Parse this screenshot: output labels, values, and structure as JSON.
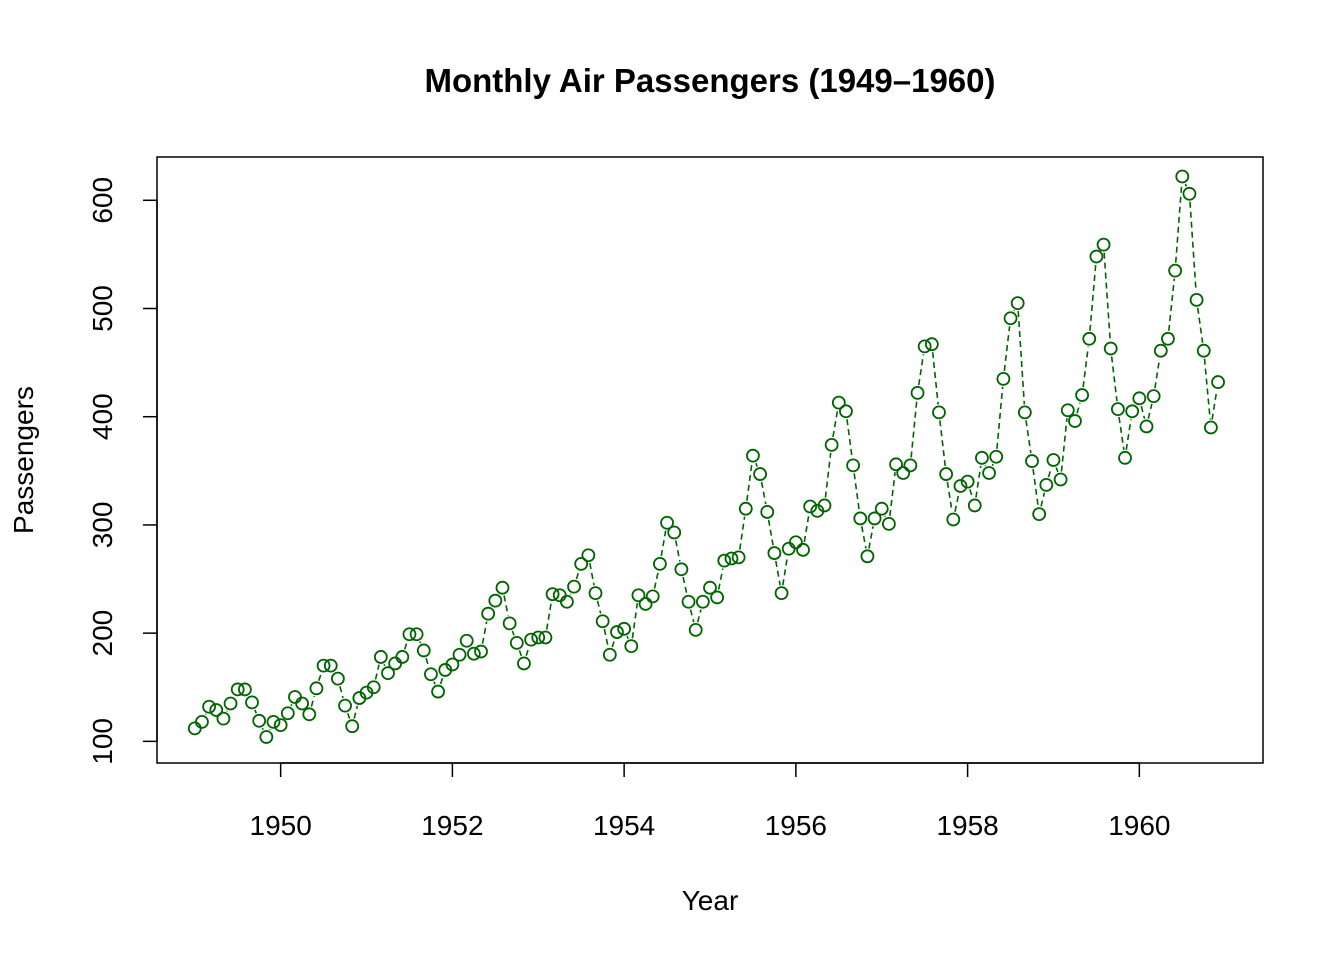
{
  "chart_data": {
    "type": "line",
    "title": "Monthly Air Passengers (1949–1960)",
    "xlabel": "Year",
    "ylabel": "Passengers",
    "xlim": [
      1948.56,
      1961.44
    ],
    "ylim": [
      80,
      640
    ],
    "x_ticks": [
      1950,
      1952,
      1954,
      1956,
      1958,
      1960
    ],
    "y_ticks": [
      100,
      200,
      300,
      400,
      500,
      600
    ],
    "x_start": 1949,
    "x_step": 0.0833333,
    "line_style": "dashed",
    "marker": "circle",
    "color": "#006400",
    "grid": false,
    "legend": "none",
    "values": [
      112,
      118,
      132,
      129,
      121,
      135,
      148,
      148,
      136,
      119,
      104,
      118,
      115,
      126,
      141,
      135,
      125,
      149,
      170,
      170,
      158,
      133,
      114,
      140,
      145,
      150,
      178,
      163,
      172,
      178,
      199,
      199,
      184,
      162,
      146,
      166,
      171,
      180,
      193,
      181,
      183,
      218,
      230,
      242,
      209,
      191,
      172,
      194,
      196,
      196,
      236,
      235,
      229,
      243,
      264,
      272,
      237,
      211,
      180,
      201,
      204,
      188,
      235,
      227,
      234,
      264,
      302,
      293,
      259,
      229,
      203,
      229,
      242,
      233,
      267,
      269,
      270,
      315,
      364,
      347,
      312,
      274,
      237,
      278,
      284,
      277,
      317,
      313,
      318,
      374,
      413,
      405,
      355,
      306,
      271,
      306,
      315,
      301,
      356,
      348,
      355,
      422,
      465,
      467,
      404,
      347,
      305,
      336,
      340,
      318,
      362,
      348,
      363,
      435,
      491,
      505,
      404,
      359,
      310,
      337,
      360,
      342,
      406,
      396,
      420,
      472,
      548,
      559,
      463,
      407,
      362,
      405,
      417,
      391,
      419,
      461,
      472,
      535,
      622,
      606,
      508,
      461,
      390,
      432
    ]
  }
}
